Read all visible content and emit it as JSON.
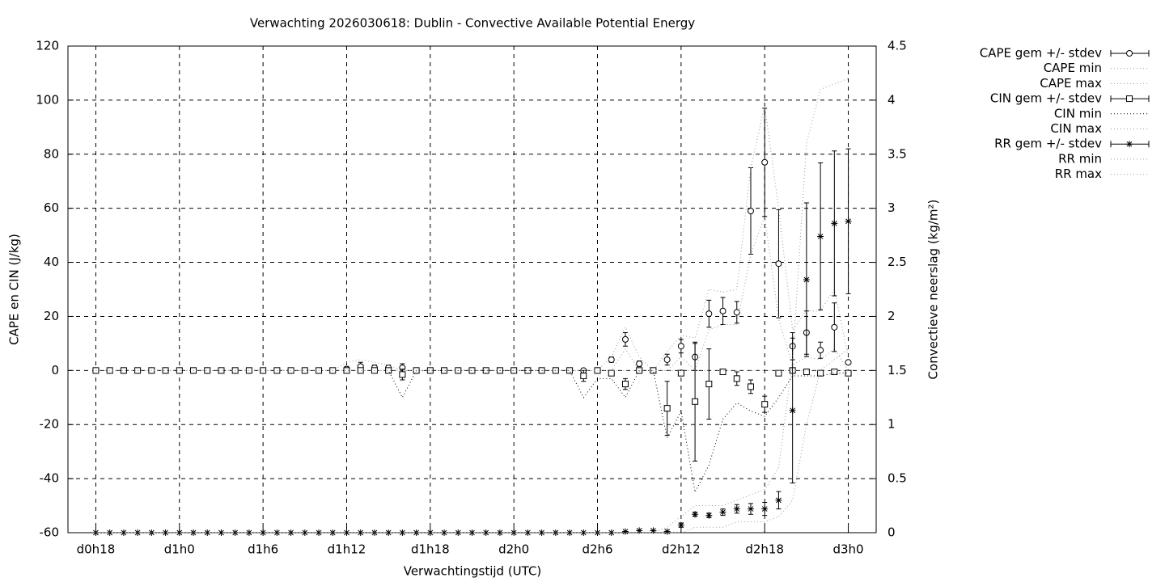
{
  "chart_data": {
    "type": "errorbar-line",
    "title": "Verwachting 2026030618: Dublin - Convective Available Potential Energy",
    "xlabel": "Verwachtingstijd (UTC)",
    "ylabel": "CAPE en CIN (J/kg)",
    "y2label": "Convectieve neerslag (kg/m²)",
    "grid": true,
    "legend": "right",
    "xlim": [
      16,
      74
    ],
    "xticks": [
      {
        "value": 18,
        "label": "d0h18"
      },
      {
        "value": 24,
        "label": "d1h0"
      },
      {
        "value": 30,
        "label": "d1h6"
      },
      {
        "value": 36,
        "label": "d1h12"
      },
      {
        "value": 42,
        "label": "d1h18"
      },
      {
        "value": 48,
        "label": "d2h0"
      },
      {
        "value": 54,
        "label": "d2h6"
      },
      {
        "value": 60,
        "label": "d2h12"
      },
      {
        "value": 66,
        "label": "d2h18"
      },
      {
        "value": 72,
        "label": "d3h0"
      }
    ],
    "ylim": [
      -60,
      120
    ],
    "yticks": [
      -60,
      -40,
      -20,
      0,
      20,
      40,
      60,
      80,
      100,
      120
    ],
    "y2lim": [
      0,
      4.5
    ],
    "y2ticks": [
      0,
      0.5,
      1,
      1.5,
      2,
      2.5,
      3,
      3.5,
      4,
      4.5
    ],
    "x": [
      18,
      19,
      20,
      21,
      22,
      23,
      24,
      25,
      26,
      27,
      28,
      29,
      30,
      31,
      32,
      33,
      34,
      35,
      36,
      37,
      38,
      39,
      40,
      41,
      42,
      43,
      44,
      45,
      46,
      47,
      48,
      49,
      50,
      51,
      52,
      53,
      54,
      55,
      56,
      57,
      58,
      59,
      60,
      61,
      62,
      63,
      64,
      65,
      66,
      67,
      68,
      69,
      70,
      71,
      72
    ],
    "series": [
      {
        "name": "CAPE gem +/- stdev",
        "color": "#000000",
        "style": "errorbars",
        "marker": "circle",
        "values": [
          0,
          0,
          0,
          0,
          0,
          0,
          0,
          0,
          0,
          0,
          0,
          0,
          0,
          0,
          0,
          0,
          0,
          0,
          0.5,
          1.5,
          1,
          1,
          1,
          0,
          0,
          0,
          0,
          0,
          0,
          0,
          0,
          0,
          0,
          0,
          0,
          0,
          0,
          4,
          11.5,
          2.5,
          0,
          4,
          9,
          5,
          21,
          22,
          21.5,
          59,
          77,
          39.5,
          9,
          14,
          7.5,
          16,
          3
        ],
        "errors": [
          0,
          0,
          0,
          0,
          0,
          0,
          0,
          0,
          0,
          0,
          0,
          0,
          0,
          0,
          0,
          0,
          0,
          0,
          1,
          1.5,
          1,
          1,
          1.5,
          0,
          0,
          0,
          0,
          0,
          0,
          0,
          0,
          0,
          0,
          0,
          0,
          0,
          0,
          1,
          2.5,
          1,
          0,
          2,
          2.5,
          5,
          5,
          5,
          4,
          16,
          20,
          20,
          5,
          8,
          3,
          9,
          0.5
        ]
      },
      {
        "name": "CAPE min",
        "color": "#999999",
        "style": "dotted",
        "values": [
          0,
          0,
          0,
          0,
          0,
          0,
          0,
          0,
          0,
          0,
          0,
          0,
          0,
          0,
          0,
          0,
          0,
          0,
          0,
          0,
          0,
          0,
          0,
          0,
          0,
          0,
          0,
          0,
          0,
          0,
          0,
          0,
          0,
          0,
          0,
          0,
          0,
          0,
          8,
          0,
          0,
          0,
          5,
          0,
          15,
          17,
          17,
          43,
          57,
          19,
          2,
          5,
          4,
          8,
          0
        ]
      },
      {
        "name": "CAPE max",
        "color": "#999999",
        "style": "dotted",
        "values": [
          0,
          0,
          0,
          0,
          0,
          0,
          0,
          0,
          0,
          0,
          0,
          0,
          0,
          0,
          0,
          0,
          0,
          0,
          3,
          4,
          3,
          2,
          0,
          0,
          0,
          0,
          0,
          0,
          0,
          0,
          0,
          0,
          0,
          0,
          0,
          0,
          0,
          5,
          16,
          5,
          0,
          7,
          13,
          12,
          30,
          29,
          30,
          75,
          98,
          60,
          15,
          22,
          22,
          30,
          5
        ]
      },
      {
        "name": "CIN gem +/- stdev",
        "color": "#000000",
        "style": "errorbars",
        "marker": "square",
        "values": [
          0,
          0,
          0,
          0,
          0,
          0,
          0,
          0,
          0,
          0,
          0,
          0,
          0,
          0,
          0,
          0,
          0,
          0,
          0,
          0,
          0,
          0,
          -1.5,
          0,
          0,
          0,
          0,
          0,
          0,
          0,
          0,
          0,
          0,
          0,
          0,
          -2,
          0,
          -1,
          -5,
          0,
          0,
          -14,
          -1,
          -11.5,
          -5,
          -0.5,
          -3,
          -6,
          -12.5,
          -1,
          0,
          -0.5,
          -1,
          -0.5,
          -1
        ],
        "errors": [
          0,
          0,
          0,
          0,
          0,
          0,
          0,
          0,
          0,
          0,
          0,
          0,
          0,
          0,
          0,
          0,
          0,
          0,
          0,
          0,
          0,
          0,
          2,
          0,
          0,
          0,
          0,
          0,
          0,
          0,
          0,
          0,
          0,
          0,
          0,
          2,
          0,
          1,
          2,
          0,
          0,
          10,
          1,
          22,
          13,
          0.5,
          2.5,
          2.5,
          3,
          0.5,
          0,
          0,
          0,
          0,
          0
        ]
      },
      {
        "name": "CIN min",
        "color": "#000000",
        "style": "dotted",
        "values": [
          0,
          0,
          0,
          0,
          0,
          0,
          0,
          0,
          0,
          0,
          0,
          0,
          0,
          0,
          0,
          0,
          0,
          0,
          0,
          0,
          0,
          0,
          -10,
          0,
          0,
          0,
          0,
          0,
          0,
          0,
          0,
          0,
          0,
          0,
          0,
          -10,
          -3,
          -3,
          -10,
          0,
          0,
          -25,
          -15,
          -45,
          -35,
          -18,
          -12,
          -15,
          -17,
          -10,
          -2,
          -2,
          -2,
          -1,
          -1
        ]
      },
      {
        "name": "CIN max",
        "color": "#999999",
        "style": "dotted",
        "values": [
          0,
          0,
          0,
          0,
          0,
          0,
          0,
          0,
          0,
          0,
          0,
          0,
          0,
          0,
          0,
          0,
          0,
          0,
          0,
          0,
          0,
          0,
          0,
          0,
          0,
          0,
          0,
          0,
          0,
          0,
          0,
          0,
          0,
          0,
          0,
          0,
          0,
          0,
          0,
          0,
          0,
          0,
          0,
          0,
          0,
          0,
          0,
          0,
          0,
          0,
          0,
          0,
          0,
          0,
          0
        ]
      },
      {
        "name": "RR gem +/- stdev",
        "color": "#000000",
        "style": "errorbars",
        "marker": "star",
        "axis": "y2",
        "values": [
          0,
          0,
          0,
          0,
          0,
          0,
          0,
          0,
          0,
          0,
          0,
          0,
          0,
          0,
          0,
          0,
          0,
          0,
          0,
          0,
          0,
          0,
          0,
          0,
          0,
          0,
          0,
          0,
          0,
          0,
          0,
          0,
          0,
          0,
          0,
          0,
          0,
          0,
          0.01,
          0.02,
          0.02,
          0.01,
          0.07,
          0.17,
          0.16,
          0.19,
          0.22,
          0.22,
          0.22,
          0.3,
          1.13,
          2.34,
          2.74,
          2.86,
          2.88
        ],
        "errors": [
          0,
          0,
          0,
          0,
          0,
          0,
          0,
          0,
          0,
          0,
          0,
          0,
          0,
          0,
          0,
          0,
          0,
          0,
          0,
          0,
          0,
          0,
          0,
          0,
          0,
          0,
          0,
          0,
          0,
          0,
          0,
          0,
          0,
          0,
          0,
          0,
          0,
          0,
          0,
          0,
          0,
          0,
          0.02,
          0.02,
          0.02,
          0.03,
          0.04,
          0.05,
          0.06,
          0.08,
          0.67,
          0.71,
          0.68,
          0.67,
          0.67
        ]
      },
      {
        "name": "RR min",
        "color": "#999999",
        "style": "dotted",
        "axis": "y2",
        "values": [
          0,
          0,
          0,
          0,
          0,
          0,
          0,
          0,
          0,
          0,
          0,
          0,
          0,
          0,
          0,
          0,
          0,
          0,
          0,
          0,
          0,
          0,
          0,
          0,
          0,
          0,
          0,
          0,
          0,
          0,
          0,
          0,
          0,
          0,
          0,
          0,
          0,
          0,
          0,
          0,
          0,
          0,
          0,
          0.05,
          0.05,
          0.05,
          0.1,
          0.1,
          0.1,
          0.15,
          0.3,
          1,
          1.5,
          1.6,
          1.7
        ]
      },
      {
        "name": "RR max",
        "color": "#999999",
        "style": "dotted",
        "axis": "y2",
        "values": [
          0,
          0,
          0,
          0,
          0,
          0,
          0,
          0,
          0,
          0,
          0,
          0,
          0,
          0,
          0,
          0,
          0,
          0,
          0,
          0,
          0,
          0,
          0,
          0,
          0,
          0,
          0,
          0,
          0,
          0,
          0,
          0,
          0,
          0,
          0,
          0,
          0,
          0,
          0,
          0,
          0,
          0.05,
          0.15,
          0.25,
          0.25,
          0.25,
          0.3,
          0.35,
          0.4,
          0.6,
          1.6,
          3.6,
          4.1,
          4.15,
          4.2
        ]
      }
    ]
  }
}
